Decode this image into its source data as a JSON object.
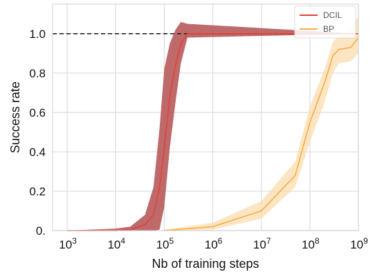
{
  "chart_data": {
    "type": "line",
    "xlabel": "Nb of training steps",
    "ylabel": "Success rate",
    "xscale": "log",
    "xlim": [
      500,
      1000000000
    ],
    "ylim": [
      0,
      1.15
    ],
    "xticks": [
      {
        "value": 1000,
        "base": "10",
        "exp": "3"
      },
      {
        "value": 10000,
        "base": "10",
        "exp": "4"
      },
      {
        "value": 100000,
        "base": "10",
        "exp": "5"
      },
      {
        "value": 1000000,
        "base": "10",
        "exp": "6"
      },
      {
        "value": 10000000,
        "base": "10",
        "exp": "7"
      },
      {
        "value": 100000000,
        "base": "10",
        "exp": "8"
      },
      {
        "value": 1000000000,
        "base": "10",
        "exp": "9"
      }
    ],
    "yticks": [
      {
        "value": 0,
        "label": "0."
      },
      {
        "value": 0.2,
        "label": "0.2"
      },
      {
        "value": 0.4,
        "label": "0.4"
      },
      {
        "value": 0.6,
        "label": "0.6"
      },
      {
        "value": 0.8,
        "label": "0.8"
      },
      {
        "value": 1.0,
        "label": "1.0"
      }
    ],
    "grid": true,
    "legend_position": "top-right",
    "reference_line": {
      "y": 1.0,
      "style": "dashed",
      "color": "#222222"
    },
    "series": [
      {
        "name": "DCIL",
        "color": "#e0413a",
        "band_color": "#b85a5a",
        "x": [
          1000,
          10000,
          20000,
          40000,
          60000,
          80000,
          100000,
          130000,
          170000,
          220000,
          300000,
          1000000000
        ],
        "y": [
          0,
          0,
          0.005,
          0.03,
          0.08,
          0.22,
          0.42,
          0.68,
          0.84,
          0.95,
          1.0,
          1.0
        ],
        "lower": [
          0,
          0,
          0,
          0,
          0,
          0.005,
          0.12,
          0.42,
          0.65,
          0.85,
          0.98,
          1.0
        ],
        "upper": [
          0,
          0.01,
          0.02,
          0.08,
          0.22,
          0.52,
          0.82,
          0.95,
          1.02,
          1.06,
          1.05,
          1.0
        ]
      },
      {
        "name": "BP",
        "color": "#f5ad45",
        "band_color": "#fbdcae",
        "x": [
          100000,
          1000000,
          10000000,
          50000000,
          100000000,
          200000000,
          300000000,
          400000000,
          700000000,
          1000000000
        ],
        "y": [
          0,
          0.02,
          0.1,
          0.28,
          0.55,
          0.75,
          0.89,
          0.92,
          0.93,
          0.98
        ],
        "lower": [
          0,
          0.005,
          0.06,
          0.22,
          0.45,
          0.65,
          0.8,
          0.85,
          0.86,
          0.9
        ],
        "upper": [
          0.005,
          0.04,
          0.15,
          0.35,
          0.63,
          0.82,
          0.96,
          0.99,
          1.02,
          1.09
        ]
      }
    ]
  }
}
